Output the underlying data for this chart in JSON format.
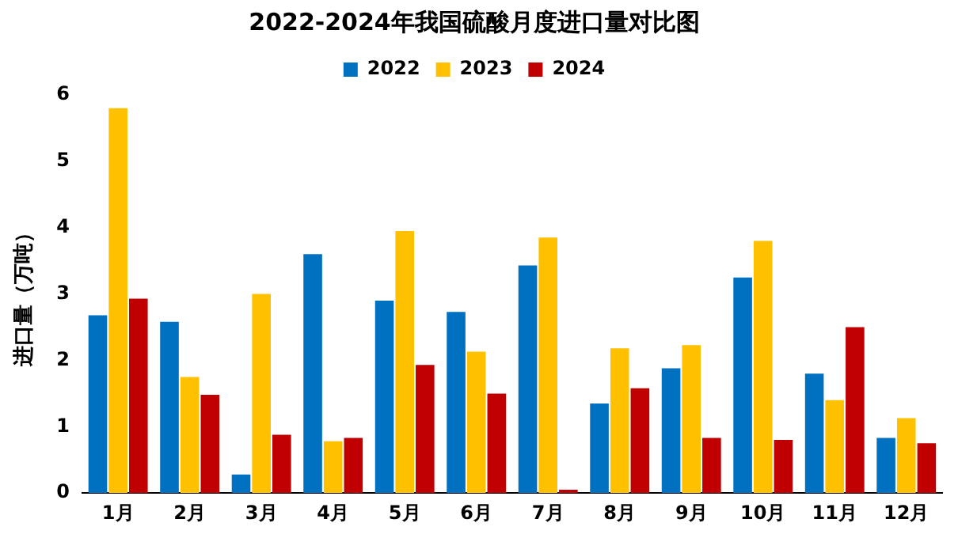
{
  "chart_data": {
    "type": "bar",
    "title": "2022-2024年我国硫酸月度进口量对比图",
    "ylabel": "进口量（万吨）",
    "categories": [
      "1月",
      "2月",
      "3月",
      "4月",
      "5月",
      "6月",
      "7月",
      "8月",
      "9月",
      "10月",
      "11月",
      "12月"
    ],
    "series": [
      {
        "name": "2022",
        "color": "#0070c0",
        "values": [
          2.68,
          2.58,
          0.28,
          3.6,
          2.9,
          2.73,
          3.43,
          1.35,
          1.88,
          3.25,
          1.8,
          0.83
        ]
      },
      {
        "name": "2023",
        "color": "#ffc000",
        "values": [
          5.8,
          1.75,
          3.0,
          0.78,
          3.95,
          2.13,
          3.85,
          2.18,
          2.23,
          3.8,
          1.4,
          1.13
        ]
      },
      {
        "name": "2024",
        "color": "#c00000",
        "values": [
          2.93,
          1.48,
          0.88,
          0.83,
          1.93,
          1.5,
          0.05,
          1.58,
          0.83,
          0.8,
          2.5,
          0.75
        ]
      }
    ],
    "ylim": [
      0,
      6
    ],
    "yticks": [
      0,
      1,
      2,
      3,
      4,
      5,
      6
    ],
    "grid": false,
    "legend": "top"
  }
}
